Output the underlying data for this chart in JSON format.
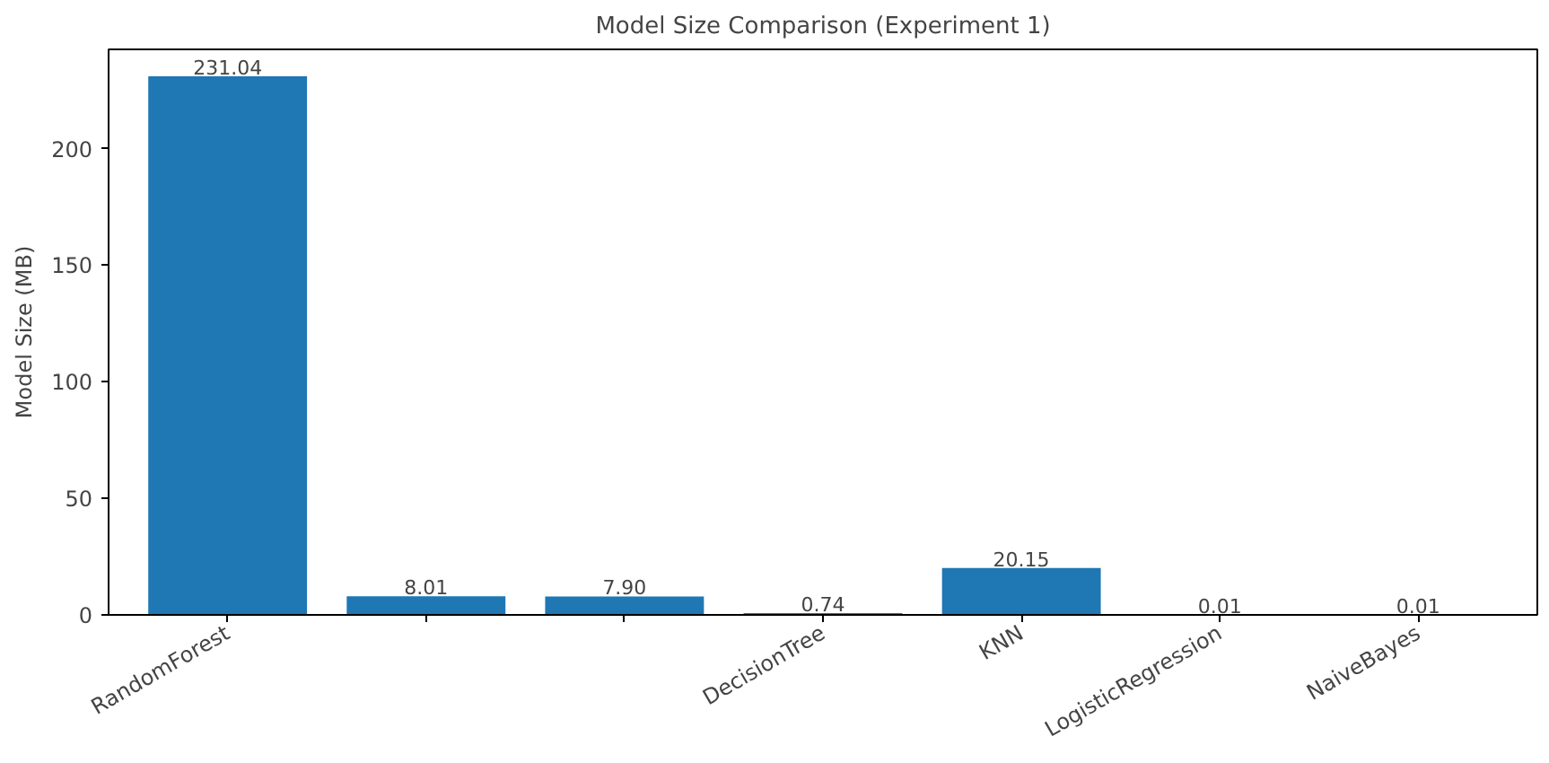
{
  "chart_data": {
    "type": "bar",
    "title": "Model Size Comparison (Experiment 1)",
    "ylabel": "Model Size (MB)",
    "categories": [
      "RandomForest",
      null,
      null,
      "DecisionTree",
      "KNN",
      "LogisticRegression",
      "NaiveBayes"
    ],
    "values": [
      231.04,
      8.01,
      7.9,
      0.74,
      20.15,
      0.01,
      0.01
    ],
    "value_labels": [
      "231.04",
      "8.01",
      "7.90",
      "0.74",
      "20.15",
      "0.01",
      "0.01"
    ],
    "color": "#1f77b4",
    "ylim": [
      0,
      242.6
    ],
    "yticks": [
      0,
      50,
      100,
      150,
      200
    ],
    "grid": false
  }
}
